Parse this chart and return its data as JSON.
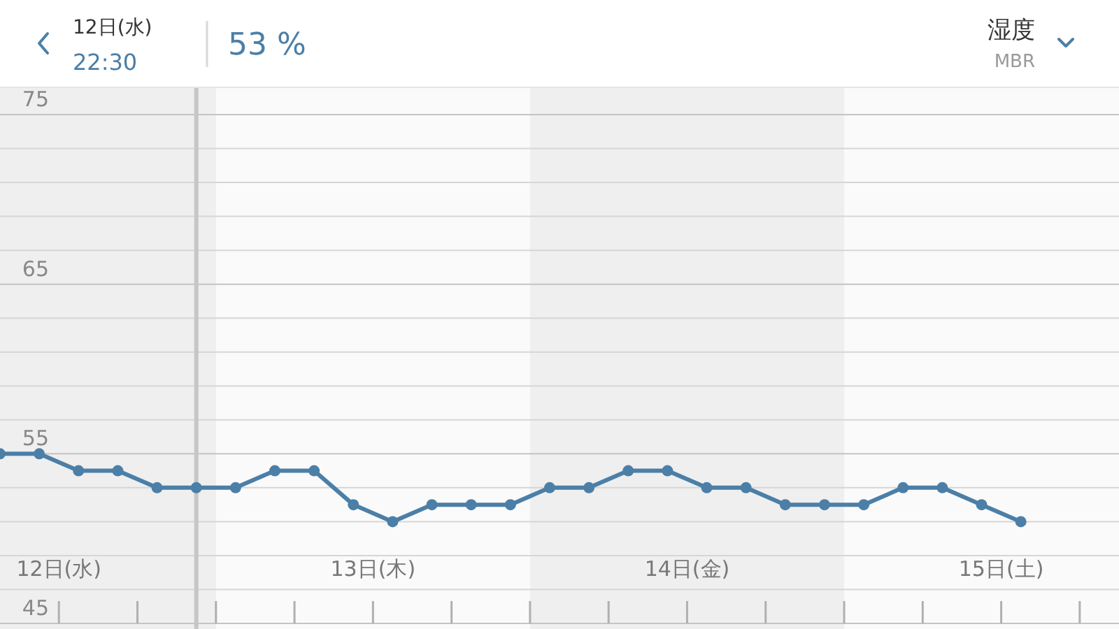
{
  "chart_data": {
    "type": "line",
    "title": "湿度",
    "subtitle": "MBR",
    "annotations": [
      "12日(水)",
      "22:30",
      "53 %"
    ],
    "x": [
      11.8125,
      11.9375,
      12.0625,
      12.1875,
      12.3125,
      12.4375,
      12.5625,
      12.6875,
      12.8125,
      12.9375,
      13.0625,
      13.1875,
      13.3125,
      13.4375,
      13.5625,
      13.6875,
      13.8125,
      13.9375,
      14.0625,
      14.1875,
      14.3125,
      14.4375,
      14.5625,
      14.6875,
      14.8125,
      14.9375,
      15.0625
    ],
    "series": [
      {
        "color": "#4b7fa7",
        "values": [
          55,
          55,
          54,
          54,
          53,
          53,
          53,
          54,
          54,
          52,
          51,
          52,
          52,
          52,
          53,
          53,
          54,
          54,
          53,
          53,
          52,
          52,
          52,
          53,
          53,
          52,
          51
        ]
      }
    ],
    "xlim": [
      11.8125,
      15.375
    ],
    "ylim": [
      45,
      75
    ],
    "xticks": [
      {
        "value": 12,
        "label": "12日(水)"
      },
      {
        "value": 12.25,
        "label": null
      },
      {
        "value": 12.5,
        "label": null
      },
      {
        "value": 12.75,
        "label": null
      },
      {
        "value": 13,
        "label": "13日(木)"
      },
      {
        "value": 13.25,
        "label": null
      },
      {
        "value": 13.5,
        "label": null
      },
      {
        "value": 13.75,
        "label": null
      },
      {
        "value": 14,
        "label": "14日(金)"
      },
      {
        "value": 14.25,
        "label": null
      },
      {
        "value": 14.5,
        "label": null
      },
      {
        "value": 14.75,
        "label": null
      },
      {
        "value": 15,
        "label": "15日(土)"
      },
      {
        "value": 15.25,
        "label": null
      }
    ],
    "yticks": [
      45,
      {
        "value": 47,
        "label": null
      },
      {
        "value": 49,
        "label": null
      },
      {
        "value": 51,
        "label": null
      },
      {
        "value": 53,
        "label": null
      },
      55,
      {
        "value": 57,
        "label": null
      },
      {
        "value": 59,
        "label": null
      },
      {
        "value": 61,
        "label": null
      },
      {
        "value": 63,
        "label": null
      },
      65,
      {
        "value": 67,
        "label": null
      },
      {
        "value": 69,
        "label": null
      },
      {
        "value": 71,
        "label": null
      },
      {
        "value": 73,
        "label": null
      },
      75
    ],
    "grid": "y",
    "marker": "circle",
    "line_style": "solid",
    "ref_lines": [
      {
        "axis": "x",
        "value": 12.4375,
        "color": "#c6c6c6"
      }
    ],
    "bands": [
      {
        "axis": "x",
        "from": 11.8125,
        "to": 12.5,
        "color": "#efefef"
      },
      {
        "axis": "x",
        "from": 13.5,
        "to": 14.5,
        "color": "#efefef"
      }
    ]
  }
}
